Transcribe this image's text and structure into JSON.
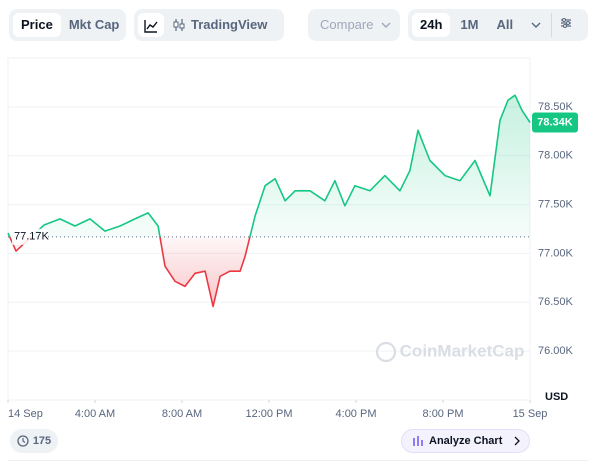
{
  "toolbar": {
    "tabs": [
      "Price",
      "Mkt Cap"
    ],
    "tradingview": "TradingView",
    "compare": "Compare",
    "ranges": [
      "24h",
      "1M",
      "All"
    ]
  },
  "footer": {
    "count": "175",
    "analyze": "Analyze Chart"
  },
  "chart_data": {
    "type": "line",
    "watermark": "CoinMarketCap",
    "y_unit_label": "USD",
    "up_color": "#16c784",
    "down_color": "#ea3943",
    "x": [
      0,
      0.37,
      1.66,
      2.39,
      3.08,
      3.77,
      4.46,
      5.15,
      5.84,
      6.44,
      6.9,
      7.22,
      7.68,
      8.14,
      8.6,
      9.06,
      9.43,
      9.75,
      10.2,
      10.67,
      10.9,
      11.36,
      11.82,
      12.28,
      12.74,
      13.2,
      13.89,
      14.57,
      15.03,
      15.49,
      15.95,
      16.64,
      17.33,
      18.02,
      18.48,
      18.85,
      19.4,
      20.09,
      20.78,
      21.47,
      22.16,
      22.62,
      22.99,
      23.31,
      23.63,
      24
    ],
    "values": [
      77209,
      77024,
      77291,
      77353,
      77281,
      77353,
      77229,
      77281,
      77353,
      77415,
      77281,
      76869,
      76715,
      76663,
      76797,
      76818,
      76457,
      76766,
      76818,
      76818,
      76972,
      77384,
      77693,
      77765,
      77539,
      77641,
      77641,
      77539,
      77744,
      77487,
      77693,
      77641,
      77796,
      77641,
      77848,
      78260,
      77951,
      77796,
      77744,
      77951,
      77590,
      78362,
      78568,
      78619,
      78465,
      78340
    ],
    "reference": {
      "value": 77170,
      "label": "77.17K"
    },
    "current": {
      "value": 78340,
      "label": "78.34K"
    },
    "xlim": [
      0,
      24
    ],
    "xticks": [
      {
        "value": 0,
        "label": "14 Sep"
      },
      {
        "value": 4,
        "label": "4:00 AM"
      },
      {
        "value": 8,
        "label": "8:00 AM"
      },
      {
        "value": 12,
        "label": "12:00 PM"
      },
      {
        "value": 16,
        "label": "4:00 PM"
      },
      {
        "value": 20,
        "label": "8:00 PM"
      },
      {
        "value": 24,
        "label": "15 Sep"
      }
    ],
    "ylim": [
      75500,
      79000
    ],
    "yticks": [
      {
        "value": 76000,
        "label": "76.00K"
      },
      {
        "value": 76500,
        "label": "76.50K"
      },
      {
        "value": 77000,
        "label": "77.00K"
      },
      {
        "value": 77500,
        "label": "77.50K"
      },
      {
        "value": 78000,
        "label": "78.00K"
      },
      {
        "value": 78500,
        "label": "78.50K"
      }
    ],
    "grid": true
  }
}
